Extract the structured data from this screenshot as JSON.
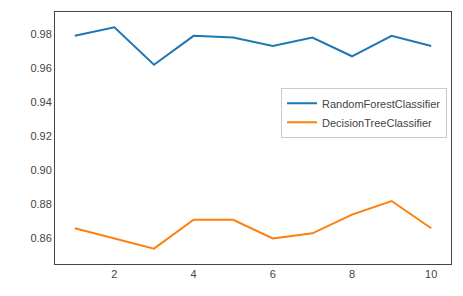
{
  "chart_data": {
    "type": "line",
    "x": [
      1,
      2,
      3,
      4,
      5,
      6,
      7,
      8,
      9,
      10
    ],
    "series": [
      {
        "name": "RandomForestClassifier",
        "color": "#1f77b4",
        "values": [
          0.979,
          0.984,
          0.962,
          0.979,
          0.978,
          0.973,
          0.978,
          0.967,
          0.979,
          0.973
        ]
      },
      {
        "name": "DecisionTreeClassifier",
        "color": "#ff7f0e",
        "values": [
          0.866,
          0.86,
          0.854,
          0.871,
          0.871,
          0.86,
          0.863,
          0.874,
          0.882,
          0.866
        ]
      }
    ],
    "xlim": [
      0.5,
      10.5
    ],
    "xticks": [
      2,
      4,
      6,
      8,
      10
    ],
    "ylim": [
      0.845,
      0.993
    ],
    "yticks": [
      0.86,
      0.88,
      {
        "value": 0.9,
        "label": "0.90"
      },
      0.92,
      0.94,
      0.96,
      0.98
    ],
    "grid": false,
    "legend": "right"
  }
}
